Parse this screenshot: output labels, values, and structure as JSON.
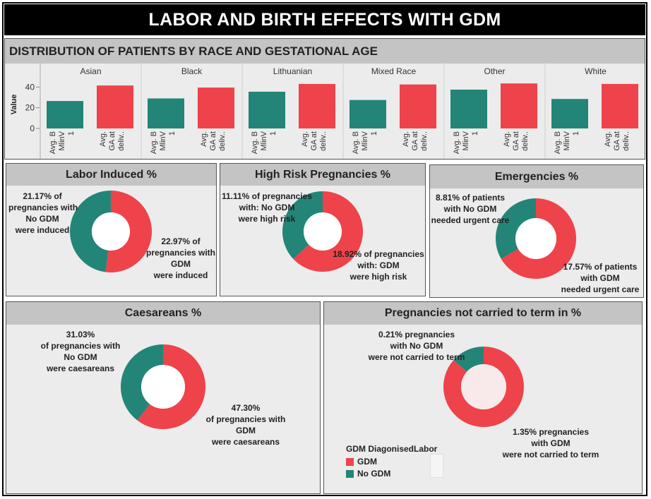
{
  "title": "LABOR AND BIRTH EFFECTS WITH GDM",
  "colors": {
    "gdm": "#ee434a",
    "no_gdm": "#238577"
  },
  "bar_panel": {
    "title": "DISTRIBUTION OF PATIENTS BY RACE AND GESTATIONAL AGE"
  },
  "chart_data": [
    {
      "type": "bar",
      "title": "DISTRIBUTION OF PATIENTS BY RACE AND GESTATIONAL AGE",
      "ylabel": "Value",
      "ylim": [
        0,
        45
      ],
      "yticks": [
        "40",
        "20",
        "0"
      ],
      "groups": [
        "Asian",
        "Black",
        "Lithuanian",
        "Mixed Race",
        "Other",
        "White"
      ],
      "measures": [
        "Avg. B MIinV 1",
        "Avg. GA at deliv.."
      ],
      "measure_labels": [
        [
          "Avg. B",
          "MlinV",
          "1"
        ],
        [
          "Avg.",
          "GA at",
          "deliv.."
        ]
      ],
      "series": [
        {
          "name": "Avg. B MIinV 1",
          "color": "#238577",
          "values": [
            26.5,
            29,
            35.5,
            27.5,
            37.5,
            28.5
          ]
        },
        {
          "name": "Avg. GA at deliv..",
          "color": "#ee434a",
          "values": [
            41.5,
            39.5,
            43,
            42.5,
            43.5,
            43
          ]
        }
      ]
    },
    {
      "type": "pie",
      "title": "Labor Induced %",
      "categories": [
        "GDM",
        "No GDM"
      ],
      "values": [
        22.97,
        21.17
      ]
    },
    {
      "type": "pie",
      "title": "High Risk Pregnancies %",
      "categories": [
        "GDM",
        "No GDM"
      ],
      "values": [
        18.92,
        11.11
      ]
    },
    {
      "type": "pie",
      "title": "Emergencies %",
      "categories": [
        "GDM",
        "No GDM"
      ],
      "values": [
        17.57,
        8.81
      ]
    },
    {
      "type": "pie",
      "title": "Caesareans %",
      "categories": [
        "GDM",
        "No GDM"
      ],
      "values": [
        47.3,
        31.03
      ]
    },
    {
      "type": "pie",
      "title": "Pregnancies not carried to term in %",
      "categories": [
        "GDM",
        "No GDM"
      ],
      "values": [
        1.35,
        0.21
      ]
    }
  ],
  "panels": {
    "labor": {
      "title": "Labor Induced %",
      "no_gdm": [
        "21.17% of",
        "pregnancies with",
        "No GDM",
        "were induced"
      ],
      "gdm": [
        "22.97% of",
        "pregnancies with",
        "GDM",
        "were induced"
      ]
    },
    "risk": {
      "title": "High Risk Pregnancies %",
      "no_gdm": [
        "11.11% of pregnancies",
        "with: No GDM",
        "were high risk"
      ],
      "gdm": [
        "18.92% of pregnancies",
        "with: GDM",
        "were high risk"
      ]
    },
    "emerg": {
      "title": "Emergencies %",
      "no_gdm": [
        "8.81% of patients",
        "with No GDM",
        "needed urgent care"
      ],
      "gdm": [
        "17.57%  of patients",
        "with GDM",
        "needed urgent care"
      ]
    },
    "caes": {
      "title": "Caesareans %",
      "no_gdm": [
        "31.03%",
        "of pregnancies with",
        "No GDM",
        "were caesareans"
      ],
      "gdm": [
        "47.30%",
        "of pregnancies with",
        "GDM",
        "were caesareans"
      ]
    },
    "term": {
      "title": "Pregnancies not carried to term in %",
      "no_gdm": [
        "0.21% pregnancies",
        "with No GDM",
        "were not carried to term"
      ],
      "gdm": [
        "1.35% pregnancies",
        "with GDM",
        "were not carried to term"
      ]
    }
  },
  "legend": {
    "title": "GDM DiagonisedLabor",
    "items": [
      "GDM",
      "No GDM"
    ]
  }
}
